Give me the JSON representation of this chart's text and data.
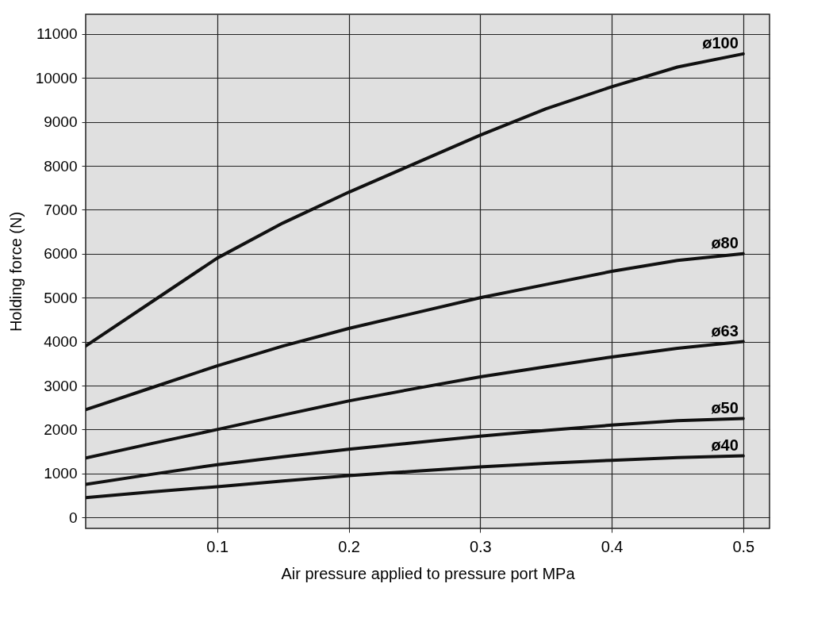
{
  "chart_data": {
    "type": "line",
    "xlabel": "Air pressure applied to pressure port MPa",
    "ylabel": "Holding force (N)",
    "x": [
      0,
      0.05,
      0.1,
      0.15,
      0.2,
      0.25,
      0.3,
      0.35,
      0.4,
      0.45,
      0.5
    ],
    "series": [
      {
        "name": "ø100",
        "color": "#111111",
        "values": [
          3900,
          4900,
          5900,
          6700,
          7400,
          8050,
          8700,
          9300,
          9800,
          10250,
          10550
        ]
      },
      {
        "name": "ø80",
        "color": "#111111",
        "values": [
          2450,
          2950,
          3450,
          3900,
          4300,
          4650,
          5000,
          5300,
          5600,
          5850,
          6000
        ]
      },
      {
        "name": "ø63",
        "color": "#111111",
        "values": [
          1350,
          1680,
          2000,
          2330,
          2650,
          2930,
          3200,
          3430,
          3650,
          3850,
          4000
        ]
      },
      {
        "name": "ø50",
        "color": "#111111",
        "values": [
          750,
          980,
          1200,
          1380,
          1550,
          1700,
          1850,
          1980,
          2100,
          2200,
          2250
        ]
      },
      {
        "name": "ø40",
        "color": "#111111",
        "values": [
          450,
          580,
          700,
          830,
          950,
          1050,
          1150,
          1230,
          1300,
          1360,
          1400
        ]
      }
    ],
    "xlim": [
      0,
      0.52
    ],
    "xticks": [
      0.1,
      0.2,
      0.3,
      0.4,
      0.5
    ],
    "ylim": [
      -250,
      11450
    ],
    "yticks": [
      0,
      1000,
      2000,
      3000,
      4000,
      5000,
      6000,
      7000,
      8000,
      9000,
      10000,
      11000
    ],
    "grid": true,
    "legend": false,
    "marker": "none",
    "line_style": "solid"
  }
}
